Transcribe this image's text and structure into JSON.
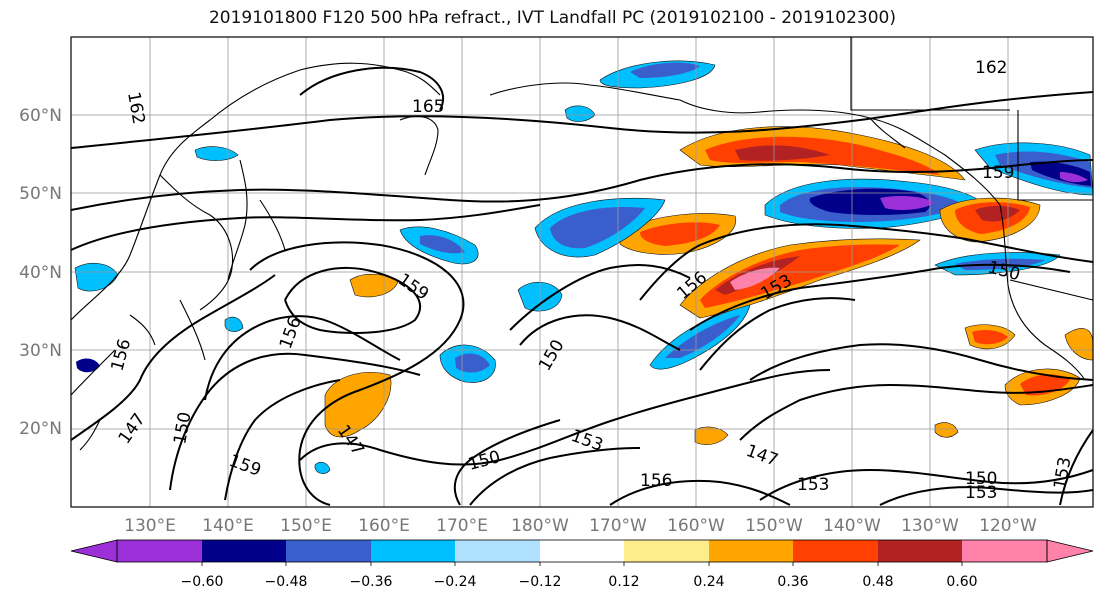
{
  "title": "2019101800 F120 500 hPa refract., IVT Landfall PC (2019102100 - 2019102300)",
  "map": {
    "projection": "equirectangular",
    "lon_range_east": [
      120,
      252
    ],
    "lat_range": [
      10,
      70
    ],
    "lat_labels": [
      "20°N",
      "30°N",
      "40°N",
      "50°N",
      "60°N"
    ],
    "lon_labels": [
      "130°E",
      "140°E",
      "150°E",
      "160°E",
      "170°E",
      "180°W",
      "170°W",
      "160°W",
      "150°W",
      "140°W",
      "130°W",
      "120°W"
    ],
    "gridlines": true,
    "contour_color": "#000000",
    "contour_labels": [
      "165",
      "162",
      "162",
      "159",
      "159",
      "159",
      "156",
      "156",
      "156",
      "156",
      "153",
      "153",
      "153",
      "153",
      "153",
      "150",
      "150",
      "150",
      "150",
      "150",
      "147",
      "147",
      "147"
    ]
  },
  "colorbar": {
    "ticks": [
      "−0.60",
      "−0.48",
      "−0.36",
      "−0.24",
      "−0.12",
      "0.12",
      "0.24",
      "0.36",
      "0.48",
      "0.60"
    ],
    "colors": [
      "#9b30d9",
      "#00008b",
      "#3a5fcd",
      "#00bfff",
      "#b0e2ff",
      "#ffffff",
      "#ffec8b",
      "#ffa500",
      "#ff4000",
      "#b22222",
      "#ff82ab"
    ],
    "extend": "both"
  }
}
